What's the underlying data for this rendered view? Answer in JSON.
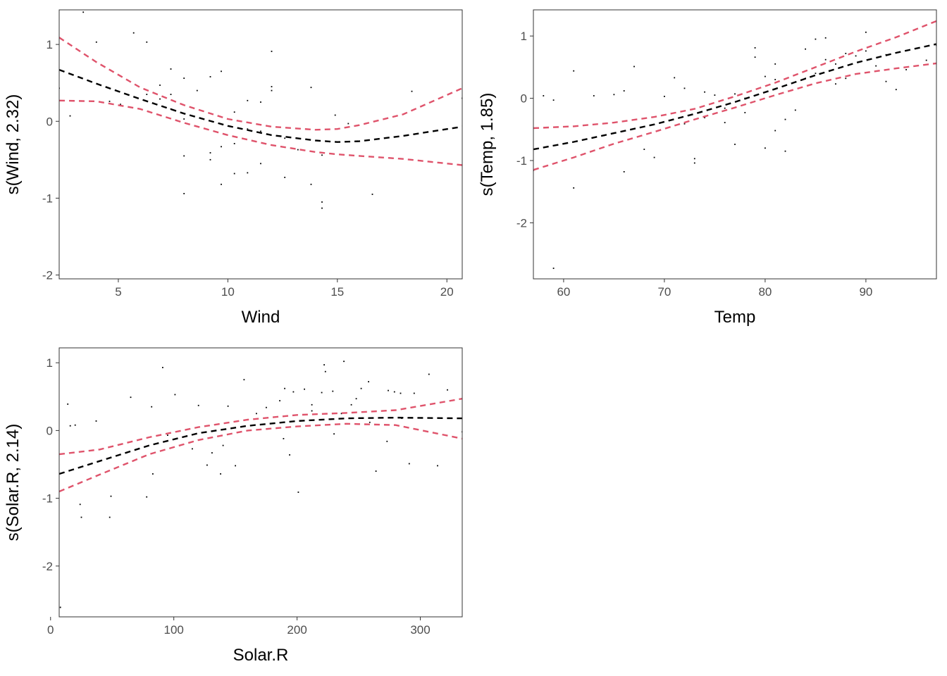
{
  "colors": {
    "fit": "#000000",
    "band": "#DF536B",
    "points": "#000000",
    "frame": "#333333",
    "tick_label": "#4d4d4d"
  },
  "chart_data": [
    {
      "type": "line",
      "xlabel": "Wind",
      "ylabel": "s(Wind, 2.32)",
      "xlim": [
        2.3,
        20.7
      ],
      "ylim": [
        -2.05,
        1.45
      ],
      "xticks": [
        5,
        10,
        15,
        20
      ],
      "yticks": [
        -2,
        -1,
        0,
        1
      ],
      "grid": false,
      "legend": "none",
      "series": [
        {
          "role": "fit",
          "style": "dashed",
          "x": [
            2.3,
            4,
            6,
            8,
            10,
            12,
            14,
            15,
            16,
            18,
            20.7
          ],
          "y": [
            0.67,
            0.49,
            0.29,
            0.1,
            -0.06,
            -0.18,
            -0.25,
            -0.27,
            -0.26,
            -0.19,
            -0.07
          ]
        },
        {
          "role": "upper-band",
          "style": "dashed",
          "x": [
            2.3,
            4,
            6,
            8,
            10,
            12,
            14,
            15,
            16,
            18,
            20.7
          ],
          "y": [
            1.09,
            0.77,
            0.44,
            0.21,
            0.03,
            -0.07,
            -0.11,
            -0.1,
            -0.05,
            0.09,
            0.43
          ]
        },
        {
          "role": "lower-band",
          "style": "dashed",
          "x": [
            2.3,
            4,
            6,
            8,
            10,
            12,
            14,
            15,
            16,
            18,
            20.7
          ],
          "y": [
            0.27,
            0.26,
            0.16,
            -0.02,
            -0.18,
            -0.31,
            -0.4,
            -0.43,
            -0.45,
            -0.49,
            -0.57
          ]
        }
      ],
      "points": {
        "x": [
          2.3,
          2.8,
          3.4,
          4.0,
          4.6,
          5.1,
          5.7,
          6.3,
          6.3,
          6.9,
          7.4,
          7.4,
          8.0,
          8.0,
          8.6,
          9.2,
          9.2,
          9.7,
          9.7,
          10.3,
          10.3,
          10.9,
          10.9,
          11.5,
          11.5,
          12.0,
          12.0,
          12.6,
          13.2,
          13.8,
          13.8,
          14.3,
          14.3,
          14.9,
          15.5,
          16.6,
          18.4,
          20.7,
          7.4,
          8.0,
          9.7,
          10.3,
          11.5,
          12.0,
          14.3,
          6.9,
          9.2,
          10.9,
          12.6,
          8.0
        ],
        "y": [
          0.43,
          0.07,
          1.42,
          1.03,
          0.26,
          0.22,
          1.15,
          1.03,
          0.35,
          0.47,
          0.68,
          0.16,
          0.56,
          -0.45,
          0.4,
          0.58,
          -0.41,
          0.65,
          -0.82,
          0.12,
          -0.68,
          0.27,
          -0.67,
          -0.13,
          -0.55,
          0.91,
          0.4,
          -0.73,
          -0.37,
          0.44,
          -0.82,
          -1.05,
          -1.13,
          0.08,
          -0.03,
          -0.95,
          0.39,
          0.3,
          0.35,
          -0.94,
          -0.33,
          -0.29,
          0.25,
          0.45,
          -0.44,
          0.29,
          -0.5,
          -0.1,
          -0.22,
          0.03
        ]
      }
    },
    {
      "type": "line",
      "xlabel": "Temp",
      "ylabel": "s(Temp, 1.85)",
      "xlim": [
        57,
        97
      ],
      "ylim": [
        -2.9,
        1.42
      ],
      "xticks": [
        60,
        70,
        80,
        90
      ],
      "yticks": [
        -2,
        -1,
        0,
        1
      ],
      "grid": false,
      "legend": "none",
      "series": [
        {
          "role": "fit",
          "style": "dashed",
          "x": [
            57,
            61,
            65,
            69,
            73,
            77,
            81,
            85,
            89,
            93,
            97
          ],
          "y": [
            -0.82,
            -0.7,
            -0.56,
            -0.42,
            -0.25,
            -0.06,
            0.15,
            0.37,
            0.57,
            0.73,
            0.87
          ]
        },
        {
          "role": "upper-band",
          "style": "dashed",
          "x": [
            57,
            61,
            65,
            69,
            73,
            77,
            81,
            85,
            89,
            93,
            97
          ],
          "y": [
            -0.48,
            -0.45,
            -0.39,
            -0.3,
            -0.17,
            0.03,
            0.25,
            0.5,
            0.75,
            0.98,
            1.24
          ]
        },
        {
          "role": "lower-band",
          "style": "dashed",
          "x": [
            57,
            61,
            65,
            69,
            73,
            77,
            81,
            85,
            89,
            93,
            97
          ],
          "y": [
            -1.15,
            -0.95,
            -0.73,
            -0.54,
            -0.34,
            -0.15,
            0.05,
            0.24,
            0.39,
            0.48,
            0.56
          ]
        }
      ],
      "points": {
        "x": [
          57,
          58,
          59,
          59,
          61,
          61,
          63,
          65,
          66,
          66,
          67,
          68,
          69,
          70,
          71,
          72,
          72,
          73,
          73,
          74,
          75,
          76,
          76,
          77,
          77,
          78,
          79,
          79,
          80,
          81,
          81,
          81,
          82,
          82,
          83,
          84,
          84,
          85,
          86,
          86,
          87,
          88,
          88,
          89,
          90,
          90,
          91,
          92,
          93,
          94,
          96,
          97,
          64,
          69,
          74,
          78,
          80,
          85,
          87,
          92
        ],
        "y": [
          -1.16,
          0.04,
          -0.03,
          -2.73,
          0.44,
          -1.44,
          0.04,
          0.06,
          0.12,
          -1.18,
          0.51,
          -0.82,
          -0.95,
          0.03,
          0.33,
          0.16,
          -0.41,
          -0.97,
          -1.04,
          -0.31,
          0.05,
          -0.39,
          -0.16,
          0.07,
          -0.74,
          -0.23,
          0.81,
          0.66,
          -0.8,
          0.55,
          0.3,
          -0.52,
          -0.34,
          -0.85,
          -0.19,
          0.79,
          0.32,
          0.95,
          0.97,
          0.62,
          0.23,
          0.32,
          0.72,
          0.68,
          1.06,
          0.76,
          0.52,
          0.27,
          0.14,
          0.46,
          0.61,
          0.85,
          -0.6,
          -0.3,
          0.1,
          0.0,
          0.35,
          0.4,
          0.55,
          0.7
        ]
      }
    },
    {
      "type": "line",
      "xlabel": "Solar.R",
      "ylabel": "s(Solar.R, 2.14)",
      "xlim": [
        7,
        334
      ],
      "ylim": [
        -2.75,
        1.22
      ],
      "xticks": [
        0,
        100,
        200,
        300
      ],
      "yticks": [
        -2,
        -1,
        0,
        1
      ],
      "grid": false,
      "legend": "none",
      "series": [
        {
          "role": "fit",
          "style": "dashed",
          "x": [
            7,
            40,
            80,
            120,
            160,
            200,
            240,
            280,
            334
          ],
          "y": [
            -0.64,
            -0.45,
            -0.22,
            -0.04,
            0.07,
            0.14,
            0.18,
            0.19,
            0.18
          ]
        },
        {
          "role": "upper-band",
          "style": "dashed",
          "x": [
            7,
            40,
            80,
            120,
            160,
            200,
            240,
            280,
            334
          ],
          "y": [
            -0.35,
            -0.28,
            -0.1,
            0.05,
            0.16,
            0.23,
            0.26,
            0.3,
            0.47
          ]
        },
        {
          "role": "lower-band",
          "style": "dashed",
          "x": [
            7,
            40,
            80,
            120,
            160,
            200,
            240,
            280,
            334
          ],
          "y": [
            -0.9,
            -0.65,
            -0.35,
            -0.14,
            0.0,
            0.06,
            0.1,
            0.08,
            -0.12
          ]
        }
      ],
      "points": {
        "x": [
          8,
          14,
          16,
          20,
          24,
          25,
          37,
          48,
          49,
          65,
          78,
          82,
          83,
          91,
          101,
          115,
          120,
          127,
          131,
          138,
          144,
          150,
          157,
          167,
          175,
          186,
          190,
          194,
          197,
          201,
          206,
          212,
          220,
          222,
          223,
          229,
          236,
          238,
          248,
          252,
          258,
          264,
          274,
          279,
          284,
          291,
          295,
          307,
          314,
          322,
          334,
          189,
          230,
          259,
          273,
          212,
          244,
          285,
          140,
          95
        ],
        "y": [
          -2.61,
          0.39,
          0.07,
          0.08,
          -1.09,
          -1.28,
          0.14,
          -1.28,
          -0.97,
          0.49,
          -0.98,
          0.35,
          -0.64,
          0.93,
          0.53,
          -0.27,
          0.37,
          -0.51,
          -0.33,
          -0.64,
          0.36,
          -0.52,
          0.75,
          0.25,
          0.34,
          0.44,
          0.62,
          -0.36,
          0.57,
          -0.91,
          0.61,
          0.38,
          0.56,
          0.97,
          0.87,
          0.58,
          0.25,
          1.02,
          0.47,
          0.62,
          0.72,
          -0.6,
          0.59,
          0.57,
          0.55,
          -0.49,
          0.55,
          0.83,
          -0.52,
          0.6,
          -0.02,
          -0.12,
          -0.05,
          0.12,
          -0.16,
          0.29,
          0.38,
          0.18,
          -0.22,
          -0.07
        ]
      }
    }
  ]
}
